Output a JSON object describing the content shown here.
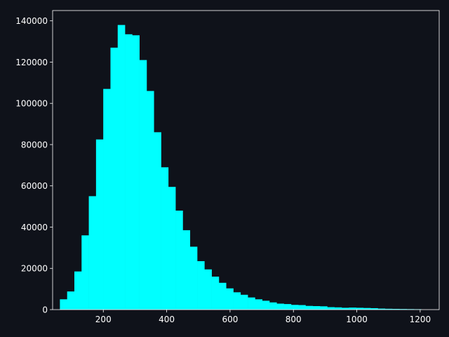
{
  "colors": {
    "background": "#0f121a",
    "bar": "#00ffff",
    "axis": "#ffffff",
    "text": "#ffffff"
  },
  "chart_data": {
    "type": "bar",
    "title": "",
    "xlabel": "",
    "ylabel": "",
    "grid": false,
    "legend": "none",
    "xlim": [
      40,
      1260
    ],
    "ylim": [
      0,
      145000
    ],
    "xticks": [
      200,
      400,
      600,
      800,
      1000,
      1200
    ],
    "xtick_labels": [
      "200",
      "400",
      "600",
      "800",
      "1000",
      "1200"
    ],
    "yticks": [
      0,
      20000,
      40000,
      60000,
      80000,
      100000,
      120000,
      140000
    ],
    "ytick_labels": [
      "0",
      "20000",
      "40000",
      "60000",
      "80000",
      "100000",
      "120000",
      "140000"
    ],
    "bin_width": 22.8,
    "bin_starts": [
      63,
      85.8,
      108.6,
      131.4,
      154.2,
      177,
      199.8,
      222.6,
      245.4,
      268.2,
      291,
      313.8,
      336.6,
      359.4,
      382.2,
      405,
      427.8,
      450.6,
      473.4,
      496.2,
      519,
      541.8,
      564.6,
      587.4,
      610.2,
      633,
      655.8,
      678.6,
      701.4,
      724.2,
      747,
      769.8,
      792.6,
      815.4,
      838.2,
      861,
      883.8,
      906.6,
      929.4,
      952.2,
      975,
      997.8,
      1020.6,
      1043.4,
      1066.2,
      1089,
      1111.8,
      1134.6,
      1157.4,
      1180.2
    ],
    "values": [
      5000,
      8800,
      18500,
      36000,
      55000,
      82500,
      107000,
      127000,
      138000,
      133500,
      133000,
      121000,
      106000,
      86000,
      69000,
      59500,
      48000,
      38500,
      30500,
      23500,
      19500,
      16000,
      13000,
      10300,
      8400,
      7200,
      5900,
      5000,
      4300,
      3500,
      2900,
      2700,
      2300,
      2200,
      1800,
      1700,
      1600,
      1200,
      1100,
      900,
      1000,
      900,
      800,
      700,
      500,
      400,
      350,
      300,
      250,
      200
    ]
  }
}
